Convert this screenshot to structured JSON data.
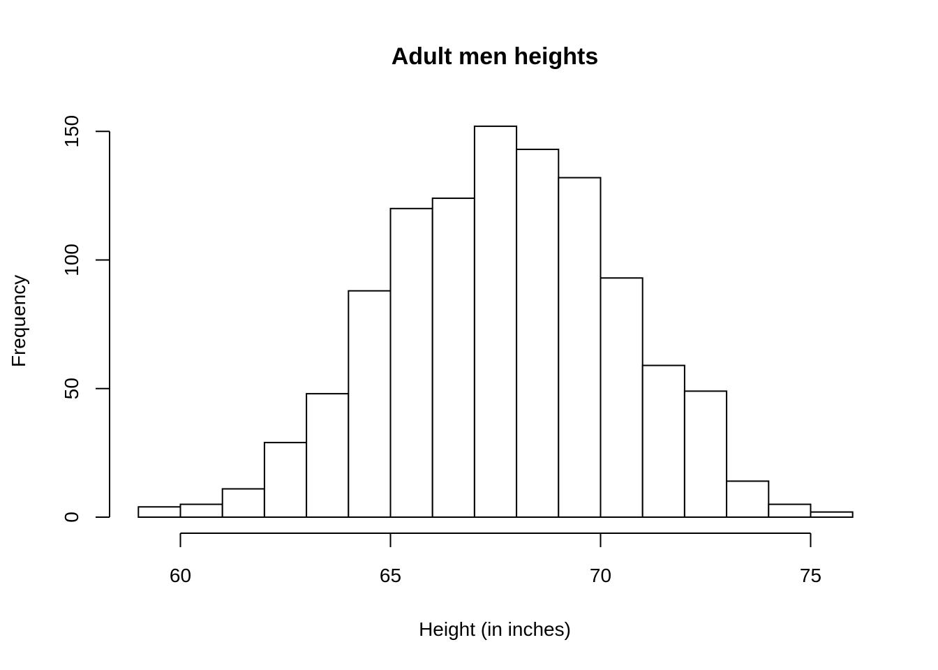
{
  "chart_data": {
    "type": "bar",
    "title": "Adult men heights",
    "xlabel": "Height (in inches)",
    "ylabel": "Frequency",
    "bin_edges": [
      59,
      60,
      61,
      62,
      63,
      64,
      65,
      66,
      67,
      68,
      69,
      70,
      71,
      72,
      73,
      74,
      75,
      76
    ],
    "values": [
      4,
      5,
      11,
      29,
      48,
      88,
      120,
      124,
      152,
      143,
      132,
      93,
      59,
      49,
      14,
      5,
      2
    ],
    "xlim": [
      59,
      76
    ],
    "ylim": [
      0,
      155
    ],
    "x_ticks": [
      60,
      65,
      70,
      75
    ],
    "y_ticks": [
      0,
      50,
      100,
      150
    ],
    "grid": false
  }
}
